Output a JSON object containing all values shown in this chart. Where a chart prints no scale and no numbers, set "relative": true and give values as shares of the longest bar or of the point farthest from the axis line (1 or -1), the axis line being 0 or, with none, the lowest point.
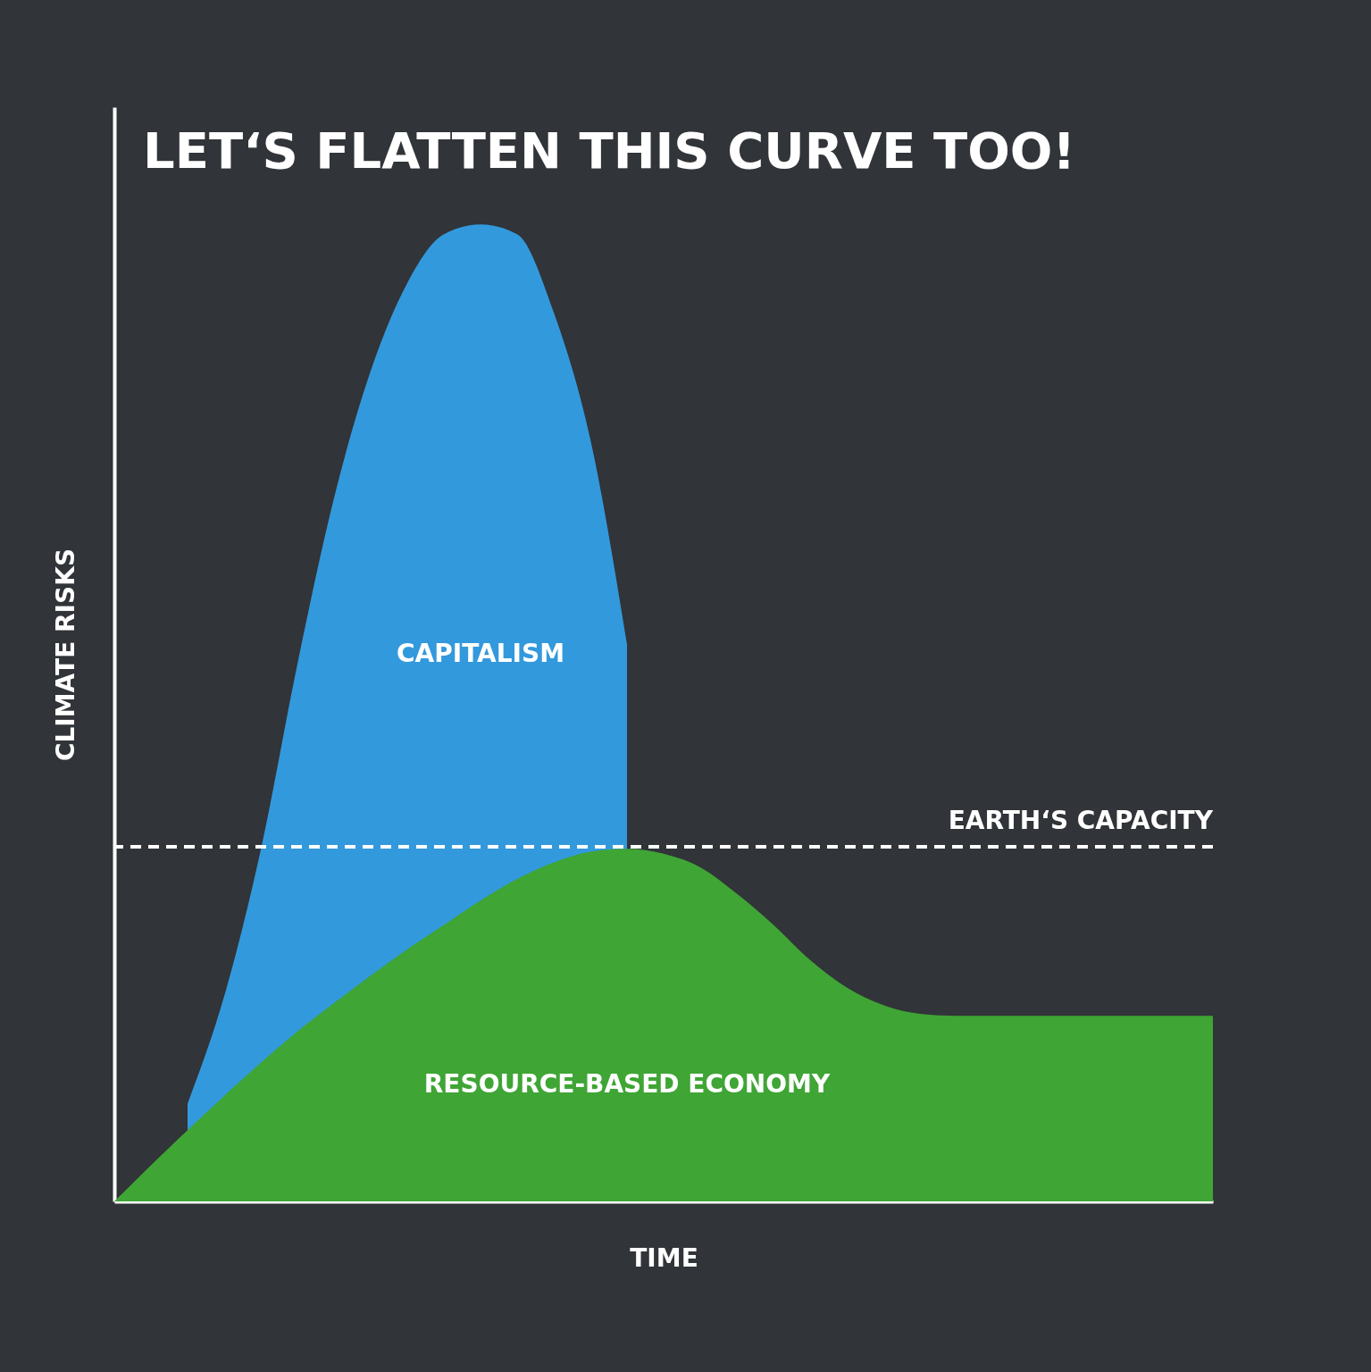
{
  "chart_data": {
    "type": "area",
    "title": "LET‘S FLATTEN THIS CURVE TOO!",
    "xlabel": "TIME",
    "ylabel": "CLIMATE RISKS",
    "relative": true,
    "grid": false,
    "categories": [
      null,
      null,
      null,
      null,
      null,
      null,
      null,
      null,
      null,
      null,
      null,
      null,
      null,
      null,
      null,
      null,
      null,
      null,
      null,
      null,
      null,
      null,
      null,
      null,
      null,
      null,
      null,
      null,
      null,
      null,
      null
    ],
    "series": [
      {
        "name": "CAPITALISM",
        "color": "#3399dd",
        "values": [
          null,
          null,
          0.1,
          0.21,
          0.36,
          0.55,
          0.72,
          0.85,
          0.94,
          0.99,
          1,
          0.99,
          0.91,
          0.78,
          0.57,
          null,
          null,
          null,
          null,
          null,
          null,
          null,
          null,
          null,
          null,
          null,
          null,
          null,
          null,
          null,
          null
        ]
      },
      {
        "name": "RESOURCE-BASED ECONOMY",
        "color": "#3fa535",
        "values": [
          0,
          0.037,
          0.073,
          0.108,
          0.142,
          0.174,
          0.203,
          0.231,
          0.258,
          0.283,
          0.308,
          0.33,
          0.347,
          0.358,
          0.361,
          0.356,
          0.342,
          0.315,
          0.283,
          0.247,
          0.219,
          0.201,
          0.192,
          0.19,
          0.19,
          0.19,
          0.19,
          0.19,
          0.19,
          0.19,
          0.19
        ]
      }
    ],
    "ref_lines": [
      {
        "axis": "y",
        "value": 0.363,
        "label": "EARTH‘S CAPACITY",
        "color": "#ffffff",
        "line_style": "dashed"
      }
    ]
  }
}
